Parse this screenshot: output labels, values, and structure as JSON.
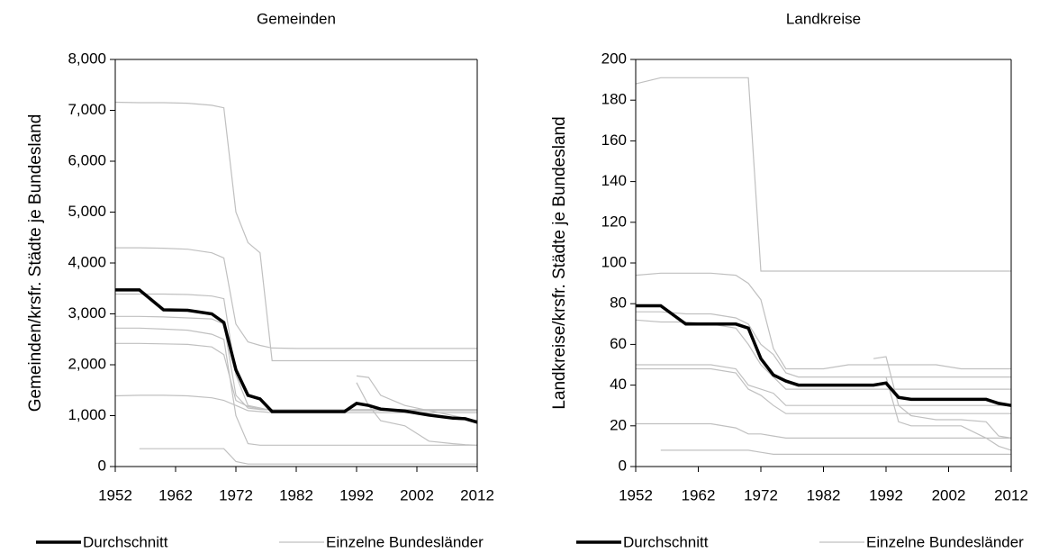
{
  "chart_data": [
    {
      "type": "line",
      "title": "Gemeinden",
      "ylabel": "Gemeinden/krsfr. Städte je Bundesland",
      "x": [
        1952,
        1956,
        1960,
        1964,
        1968,
        1970,
        1972,
        1974,
        1976,
        1978,
        1982,
        1986,
        1990,
        1992,
        1994,
        1996,
        2000,
        2004,
        2008,
        2010,
        2012
      ],
      "xlim": [
        1952,
        2012
      ],
      "xticks": [
        1952,
        1962,
        1972,
        1982,
        1992,
        2002,
        2012
      ],
      "ylim": [
        0,
        8000
      ],
      "yticks": [
        0,
        {
          "value": 1000,
          "label": "1,000"
        },
        {
          "value": 2000,
          "label": "2,000"
        },
        {
          "value": 3000,
          "label": "3,000"
        },
        {
          "value": 4000,
          "label": "4,000"
        },
        {
          "value": 5000,
          "label": "5,000"
        },
        {
          "value": 6000,
          "label": "6,000"
        },
        {
          "value": 7000,
          "label": "7,000"
        },
        {
          "value": 8000,
          "label": "8,000"
        }
      ],
      "series": [
        {
          "name": "Durchschnitt",
          "color": "#000000",
          "values": [
            3470,
            3470,
            3080,
            3070,
            3000,
            2830,
            1900,
            1400,
            1330,
            1080,
            1080,
            1080,
            1080,
            1240,
            1200,
            1130,
            1090,
            1010,
            950,
            940,
            870
          ]
        },
        {
          "name": "Einzelne Bundesländer",
          "color": "#c0c0c0",
          "lines": [
            [
              7160,
              7150,
              7150,
              7140,
              7100,
              7050,
              5000,
              4400,
              4200,
              2080,
              2080,
              2080,
              2080,
              2080,
              2080,
              2080,
              2080,
              2080,
              2080,
              2080,
              2080
            ],
            [
              4300,
              4300,
              4290,
              4270,
              4200,
              4100,
              2800,
              2450,
              2380,
              2330,
              2320,
              2320,
              2320,
              2320,
              2320,
              2320,
              2320,
              2320,
              2320,
              2320,
              2320
            ],
            [
              3390,
              3390,
              3390,
              3380,
              3350,
              3300,
              1800,
              1200,
              1150,
              1100,
              1100,
              1100,
              1100,
              1100,
              1100,
              1100,
              1100,
              1100,
              1100,
              1100,
              1100
            ],
            [
              2950,
              2950,
              2940,
              2920,
              2900,
              2800,
              1400,
              1150,
              1120,
              1110,
              1110,
              1110,
              1110,
              1110,
              1110,
              1110,
              1110,
              1110,
              1110,
              1110,
              1110
            ],
            [
              2720,
              2720,
              2700,
              2680,
              2600,
              2500,
              1000,
              450,
              420,
              420,
              420,
              420,
              420,
              420,
              420,
              420,
              420,
              420,
              420,
              420,
              420
            ],
            [
              2420,
              2420,
              2410,
              2400,
              2350,
              2200,
              1300,
              1180,
              1130,
              1120,
              1120,
              1120,
              1120,
              1120,
              1120,
              1120,
              1120,
              1120,
              1120,
              1120,
              1120
            ],
            [
              1390,
              1400,
              1400,
              1390,
              1350,
              1300,
              1200,
              1100,
              1080,
              1060,
              1060,
              1060,
              1060,
              1060,
              1060,
              1060,
              1060,
              1060,
              1060,
              1060,
              1060
            ],
            [
              null,
              350,
              350,
              350,
              350,
              350,
              100,
              50,
              50,
              50,
              50,
              50,
              50,
              50,
              50,
              50,
              50,
              50,
              50,
              50,
              50
            ],
            [
              null,
              null,
              null,
              null,
              null,
              null,
              null,
              null,
              null,
              null,
              null,
              null,
              null,
              1780,
              1750,
              1400,
              1200,
              1100,
              1000,
              950,
              900
            ],
            [
              null,
              null,
              null,
              null,
              null,
              null,
              null,
              null,
              null,
              null,
              null,
              null,
              null,
              1650,
              1200,
              900,
              800,
              500,
              450,
              430,
              420
            ]
          ]
        }
      ]
    },
    {
      "type": "line",
      "title": "Landkreise",
      "ylabel": "Landkreise/krsfr. Städte je Bundesland",
      "x": [
        1952,
        1956,
        1960,
        1964,
        1968,
        1970,
        1972,
        1974,
        1976,
        1978,
        1982,
        1986,
        1990,
        1992,
        1994,
        1996,
        2000,
        2004,
        2008,
        2010,
        2012
      ],
      "xlim": [
        1952,
        2012
      ],
      "xticks": [
        1952,
        1962,
        1972,
        1982,
        1992,
        2002,
        2012
      ],
      "ylim": [
        0,
        200
      ],
      "yticks": [
        0,
        20,
        40,
        60,
        80,
        100,
        120,
        140,
        160,
        180,
        200
      ],
      "series": [
        {
          "name": "Durchschnitt",
          "color": "#000000",
          "values": [
            79,
            79,
            70,
            70,
            70,
            68,
            53,
            45,
            42,
            40,
            40,
            40,
            40,
            41,
            34,
            33,
            33,
            33,
            33,
            31,
            30
          ]
        },
        {
          "name": "Einzelne Bundesländer",
          "color": "#c0c0c0",
          "lines": [
            [
              188,
              191,
              191,
              191,
              191,
              191,
              96,
              96,
              96,
              96,
              96,
              96,
              96,
              96,
              96,
              96,
              96,
              96,
              96,
              96,
              96
            ],
            [
              94,
              95,
              95,
              95,
              94,
              90,
              82,
              58,
              48,
              48,
              48,
              50,
              50,
              50,
              50,
              50,
              50,
              48,
              48,
              48,
              48
            ],
            [
              76,
              76,
              75,
              75,
              73,
              70,
              60,
              55,
              46,
              44,
              44,
              44,
              44,
              44,
              44,
              44,
              44,
              44,
              44,
              44,
              44
            ],
            [
              72,
              71,
              71,
              70,
              68,
              60,
              50,
              44,
              38,
              38,
              38,
              38,
              38,
              38,
              38,
              38,
              38,
              38,
              38,
              38,
              38
            ],
            [
              50,
              50,
              50,
              50,
              48,
              40,
              38,
              36,
              30,
              30,
              30,
              30,
              30,
              30,
              30,
              30,
              30,
              30,
              30,
              30,
              30
            ],
            [
              48,
              48,
              48,
              48,
              46,
              38,
              35,
              30,
              26,
              26,
              26,
              26,
              26,
              26,
              26,
              26,
              26,
              26,
              26,
              26,
              26
            ],
            [
              21,
              21,
              21,
              21,
              19,
              16,
              16,
              15,
              14,
              14,
              14,
              14,
              14,
              14,
              14,
              14,
              14,
              14,
              14,
              14,
              14
            ],
            [
              null,
              8,
              8,
              8,
              8,
              8,
              7,
              6,
              6,
              6,
              6,
              6,
              6,
              6,
              6,
              6,
              6,
              6,
              6,
              6,
              6
            ],
            [
              null,
              null,
              null,
              null,
              null,
              null,
              null,
              null,
              null,
              null,
              null,
              null,
              53,
              54,
              30,
              25,
              23,
              23,
              22,
              15,
              14
            ],
            [
              null,
              null,
              null,
              null,
              null,
              null,
              null,
              null,
              null,
              null,
              null,
              null,
              null,
              44,
              22,
              20,
              20,
              20,
              14,
              10,
              8
            ]
          ]
        }
      ]
    }
  ]
}
